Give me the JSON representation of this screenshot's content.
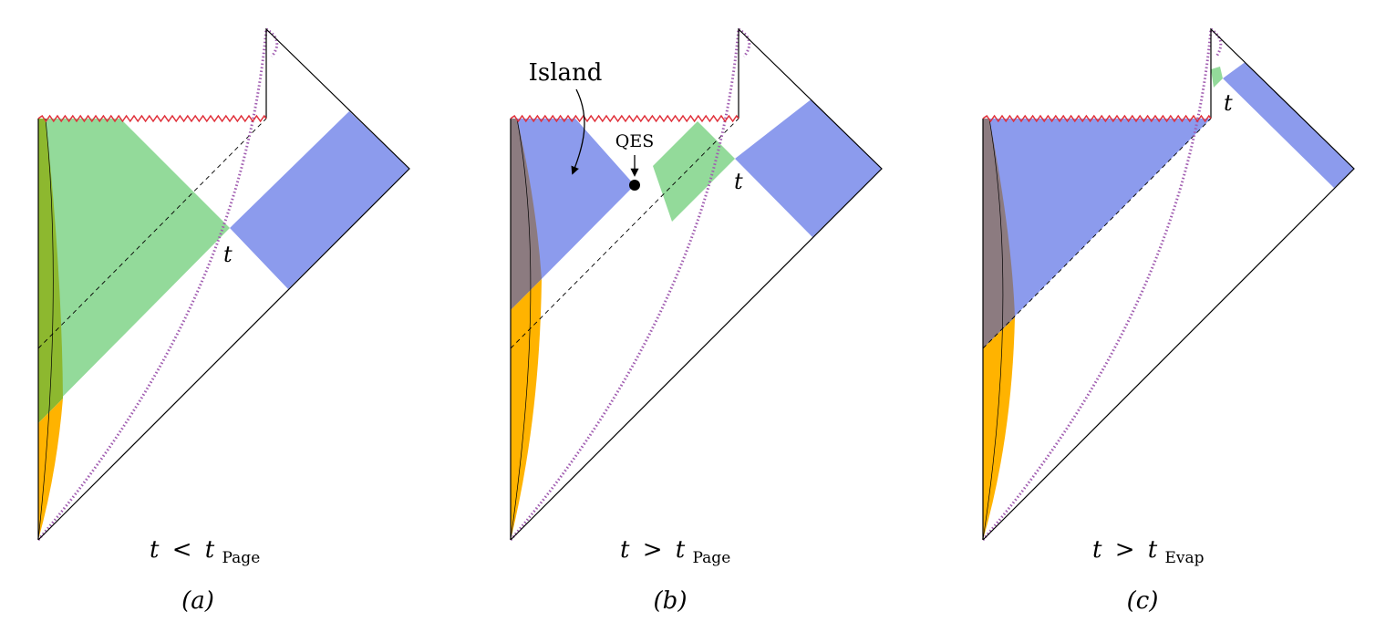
{
  "panels": [
    {
      "id": "a",
      "condition": {
        "var": "t",
        "op": "<",
        "sub_var": "t",
        "subscript": "Page"
      },
      "caption": "(a)",
      "time_label": "t"
    },
    {
      "id": "b",
      "condition": {
        "var": "t",
        "op": ">",
        "sub_var": "t",
        "subscript": "Page"
      },
      "caption": "(b)",
      "time_label": "t",
      "annotations": {
        "island": "Island",
        "qes": "QES"
      }
    },
    {
      "id": "c",
      "condition": {
        "var": "t",
        "op": ">",
        "sub_var": "t",
        "subscript": "Evap"
      },
      "caption": "(c)",
      "time_label": "t"
    }
  ],
  "colors": {
    "green": "#93da9a",
    "blue": "#8c9bed",
    "orange": "#ffb300",
    "olive": "#8db82f",
    "mauve": "#8c7b80",
    "singularity": "#e0303a",
    "trajectory": "#a05cb0"
  }
}
